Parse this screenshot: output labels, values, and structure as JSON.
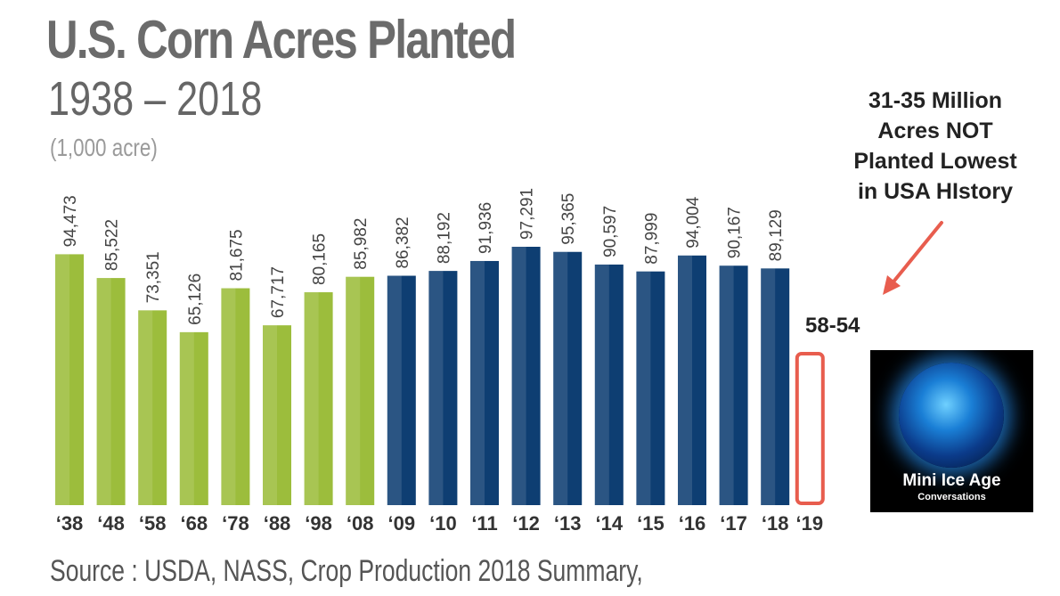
{
  "header": {
    "title": "U.S. Corn Acres Planted",
    "subtitle": "1938 – 2018",
    "unit": "(1,000 acre)"
  },
  "annotation": {
    "lines": [
      "31-35 Million",
      "Acres NOT",
      "Planted Lowest",
      "in USA HIstory"
    ],
    "range_label": "58-54"
  },
  "source": "Source : USDA, NASS, Crop Production 2018 Summary,",
  "badge": {
    "title": "Mini Ice Age",
    "subtitle": "Conversations"
  },
  "colors": {
    "green": "#9cbd3c",
    "blue": "#0e3e72",
    "highlight": "#e85d4e"
  },
  "chart_data": {
    "type": "bar",
    "title": "U.S. Corn Acres Planted",
    "subtitle": "1938 – 2018",
    "ylabel": "(1,000 acre)",
    "categories": [
      "‘38",
      "‘48",
      "‘58",
      "‘68",
      "‘78",
      "‘88",
      "‘98",
      "‘08",
      "‘09",
      "‘10",
      "‘11",
      "‘12",
      "‘13",
      "‘14",
      "‘15",
      "‘16",
      "‘17",
      "‘18",
      "‘19"
    ],
    "values": [
      94473,
      85522,
      73351,
      65126,
      81675,
      67717,
      80165,
      85982,
      86382,
      88192,
      91936,
      97291,
      95365,
      90597,
      87999,
      94004,
      90167,
      89129,
      null
    ],
    "value_labels": [
      "94,473",
      "85,522",
      "73,351",
      "65,126",
      "81,675",
      "67,717",
      "80,165",
      "85,982",
      "86,382",
      "88,192",
      "91,936",
      "97,291",
      "95,365",
      "90,597",
      "87,999",
      "94,004",
      "90,167",
      "89,129",
      ""
    ],
    "bar_colors": [
      "green",
      "green",
      "green",
      "green",
      "green",
      "green",
      "green",
      "green",
      "blue",
      "blue",
      "blue",
      "blue",
      "blue",
      "blue",
      "blue",
      "blue",
      "blue",
      "blue",
      "highlight"
    ],
    "ylim": [
      0,
      97291
    ],
    "grid": false,
    "legend": "none"
  }
}
